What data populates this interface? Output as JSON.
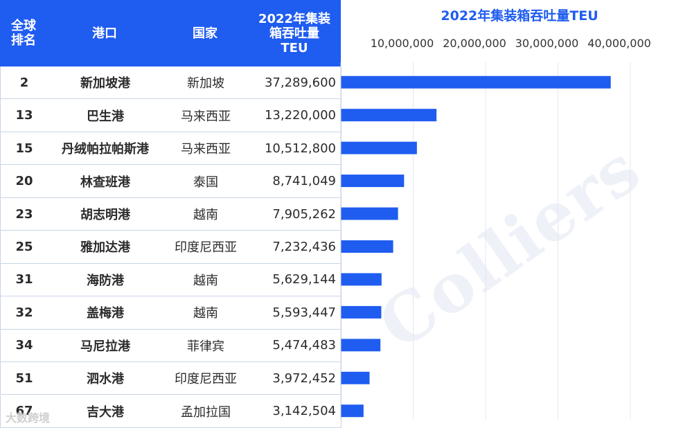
{
  "table": {
    "headers": {
      "rank": "全球\n排名",
      "port": "港口",
      "country": "国家",
      "teu": "2022年集装\n箱吞吐量\nTEU"
    },
    "rows": [
      {
        "rank": "2",
        "port": "新加坡港",
        "country": "新加坡",
        "teu": "37,289,600"
      },
      {
        "rank": "13",
        "port": "巴生港",
        "country": "马来西亚",
        "teu": "13,220,000"
      },
      {
        "rank": "15",
        "port": "丹绒帕拉帕斯港",
        "country": "马来西亚",
        "teu": "10,512,800"
      },
      {
        "rank": "20",
        "port": "林查班港",
        "country": "泰国",
        "teu": "8,741,049"
      },
      {
        "rank": "23",
        "port": "胡志明港",
        "country": "越南",
        "teu": "7,905,262"
      },
      {
        "rank": "25",
        "port": "雅加达港",
        "country": "印度尼西亚",
        "teu": "7,232,436"
      },
      {
        "rank": "31",
        "port": "海防港",
        "country": "越南",
        "teu": "5,629,144"
      },
      {
        "rank": "32",
        "port": "盖梅港",
        "country": "越南",
        "teu": "5,593,447"
      },
      {
        "rank": "34",
        "port": "马尼拉港",
        "country": "菲律宾",
        "teu": "5,474,483"
      },
      {
        "rank": "51",
        "port": "泗水港",
        "country": "印度尼西亚",
        "teu": "3,972,452"
      },
      {
        "rank": "67",
        "port": "吉大港",
        "country": "孟加拉国",
        "teu": "3,142,504"
      }
    ]
  },
  "chart_data": {
    "type": "bar",
    "orientation": "horizontal",
    "title": "2022年集装箱吞吐量TEU",
    "categories": [
      "新加坡港",
      "巴生港",
      "丹绒帕拉帕斯港",
      "林查班港",
      "胡志明港",
      "雅加达港",
      "海防港",
      "盖梅港",
      "马尼拉港",
      "泗水港",
      "吉大港"
    ],
    "values": [
      37289600,
      13220000,
      10512800,
      8741049,
      7905262,
      7232436,
      5629144,
      5593447,
      5474483,
      3972452,
      3142504
    ],
    "xlim": [
      0,
      40000000
    ],
    "xticks": [
      10000000,
      20000000,
      30000000,
      40000000
    ],
    "xtick_labels": [
      "10,000,000",
      "20,000,000",
      "30,000,000",
      "40,000,000"
    ],
    "grid": true,
    "bar_color": "#1f5cf0"
  },
  "colors": {
    "header_bg": "#1f5cf0",
    "accent": "#1f5cf0"
  },
  "watermark": "Colliers",
  "footer_mark": "大数跨境"
}
